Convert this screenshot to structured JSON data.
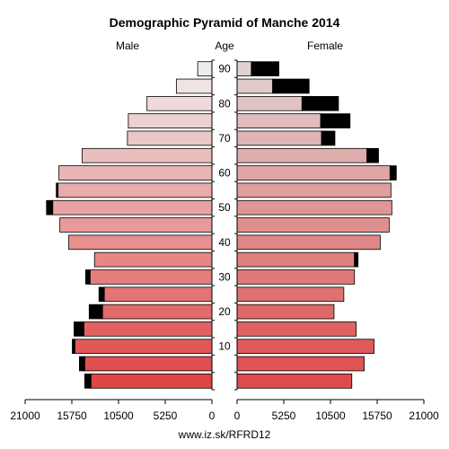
{
  "chart_data": {
    "type": "bar",
    "title": "Demographic Pyramid of Manche 2014",
    "left_label": "Male",
    "center_label": "Age",
    "right_label": "Female",
    "x_ticks_left": [
      "21000",
      "15750",
      "10500",
      "5250",
      "0"
    ],
    "x_ticks_right": [
      "0",
      "5250",
      "10500",
      "15750",
      "21000"
    ],
    "xlim": [
      0,
      21000
    ],
    "y_ticks": [
      "10",
      "20",
      "30",
      "40",
      "50",
      "60",
      "70",
      "80",
      "90"
    ],
    "age_groups": [
      "0-4",
      "5-9",
      "10-14",
      "15-19",
      "20-24",
      "25-29",
      "30-34",
      "35-39",
      "40-44",
      "45-49",
      "50-54",
      "55-59",
      "60-64",
      "65-69",
      "70-74",
      "75-79",
      "80-84",
      "85-89",
      "90+"
    ],
    "series": [
      {
        "name": "Male",
        "values": [
          13600,
          14300,
          15400,
          14400,
          12300,
          12100,
          13700,
          13200,
          16100,
          17100,
          17900,
          17300,
          17200,
          14600,
          9500,
          9400,
          7300,
          4000,
          1600
        ],
        "excess": [
          700,
          600,
          300,
          1100,
          1500,
          600,
          500,
          0,
          0,
          0,
          700,
          200,
          0,
          0,
          0,
          0,
          0,
          0,
          0
        ]
      },
      {
        "name": "Female",
        "values": [
          12900,
          14300,
          15400,
          13400,
          10900,
          12000,
          13200,
          13200,
          16100,
          17100,
          17400,
          17300,
          17200,
          14600,
          9500,
          9400,
          7300,
          4000,
          1600
        ],
        "excess": [
          0,
          0,
          0,
          0,
          0,
          0,
          0,
          400,
          0,
          0,
          0,
          0,
          700,
          1300,
          1500,
          3300,
          4100,
          4100,
          3100
        ]
      },
      {
        "name": "Excess",
        "values": [
          700,
          600,
          300,
          1100,
          1500,
          600,
          500,
          400,
          0,
          0,
          700,
          200,
          700,
          1300,
          1500,
          3300,
          4100,
          4100,
          3100
        ]
      }
    ],
    "grid": false,
    "legend": "none"
  },
  "footer": "www.iz.sk/RFRD12"
}
